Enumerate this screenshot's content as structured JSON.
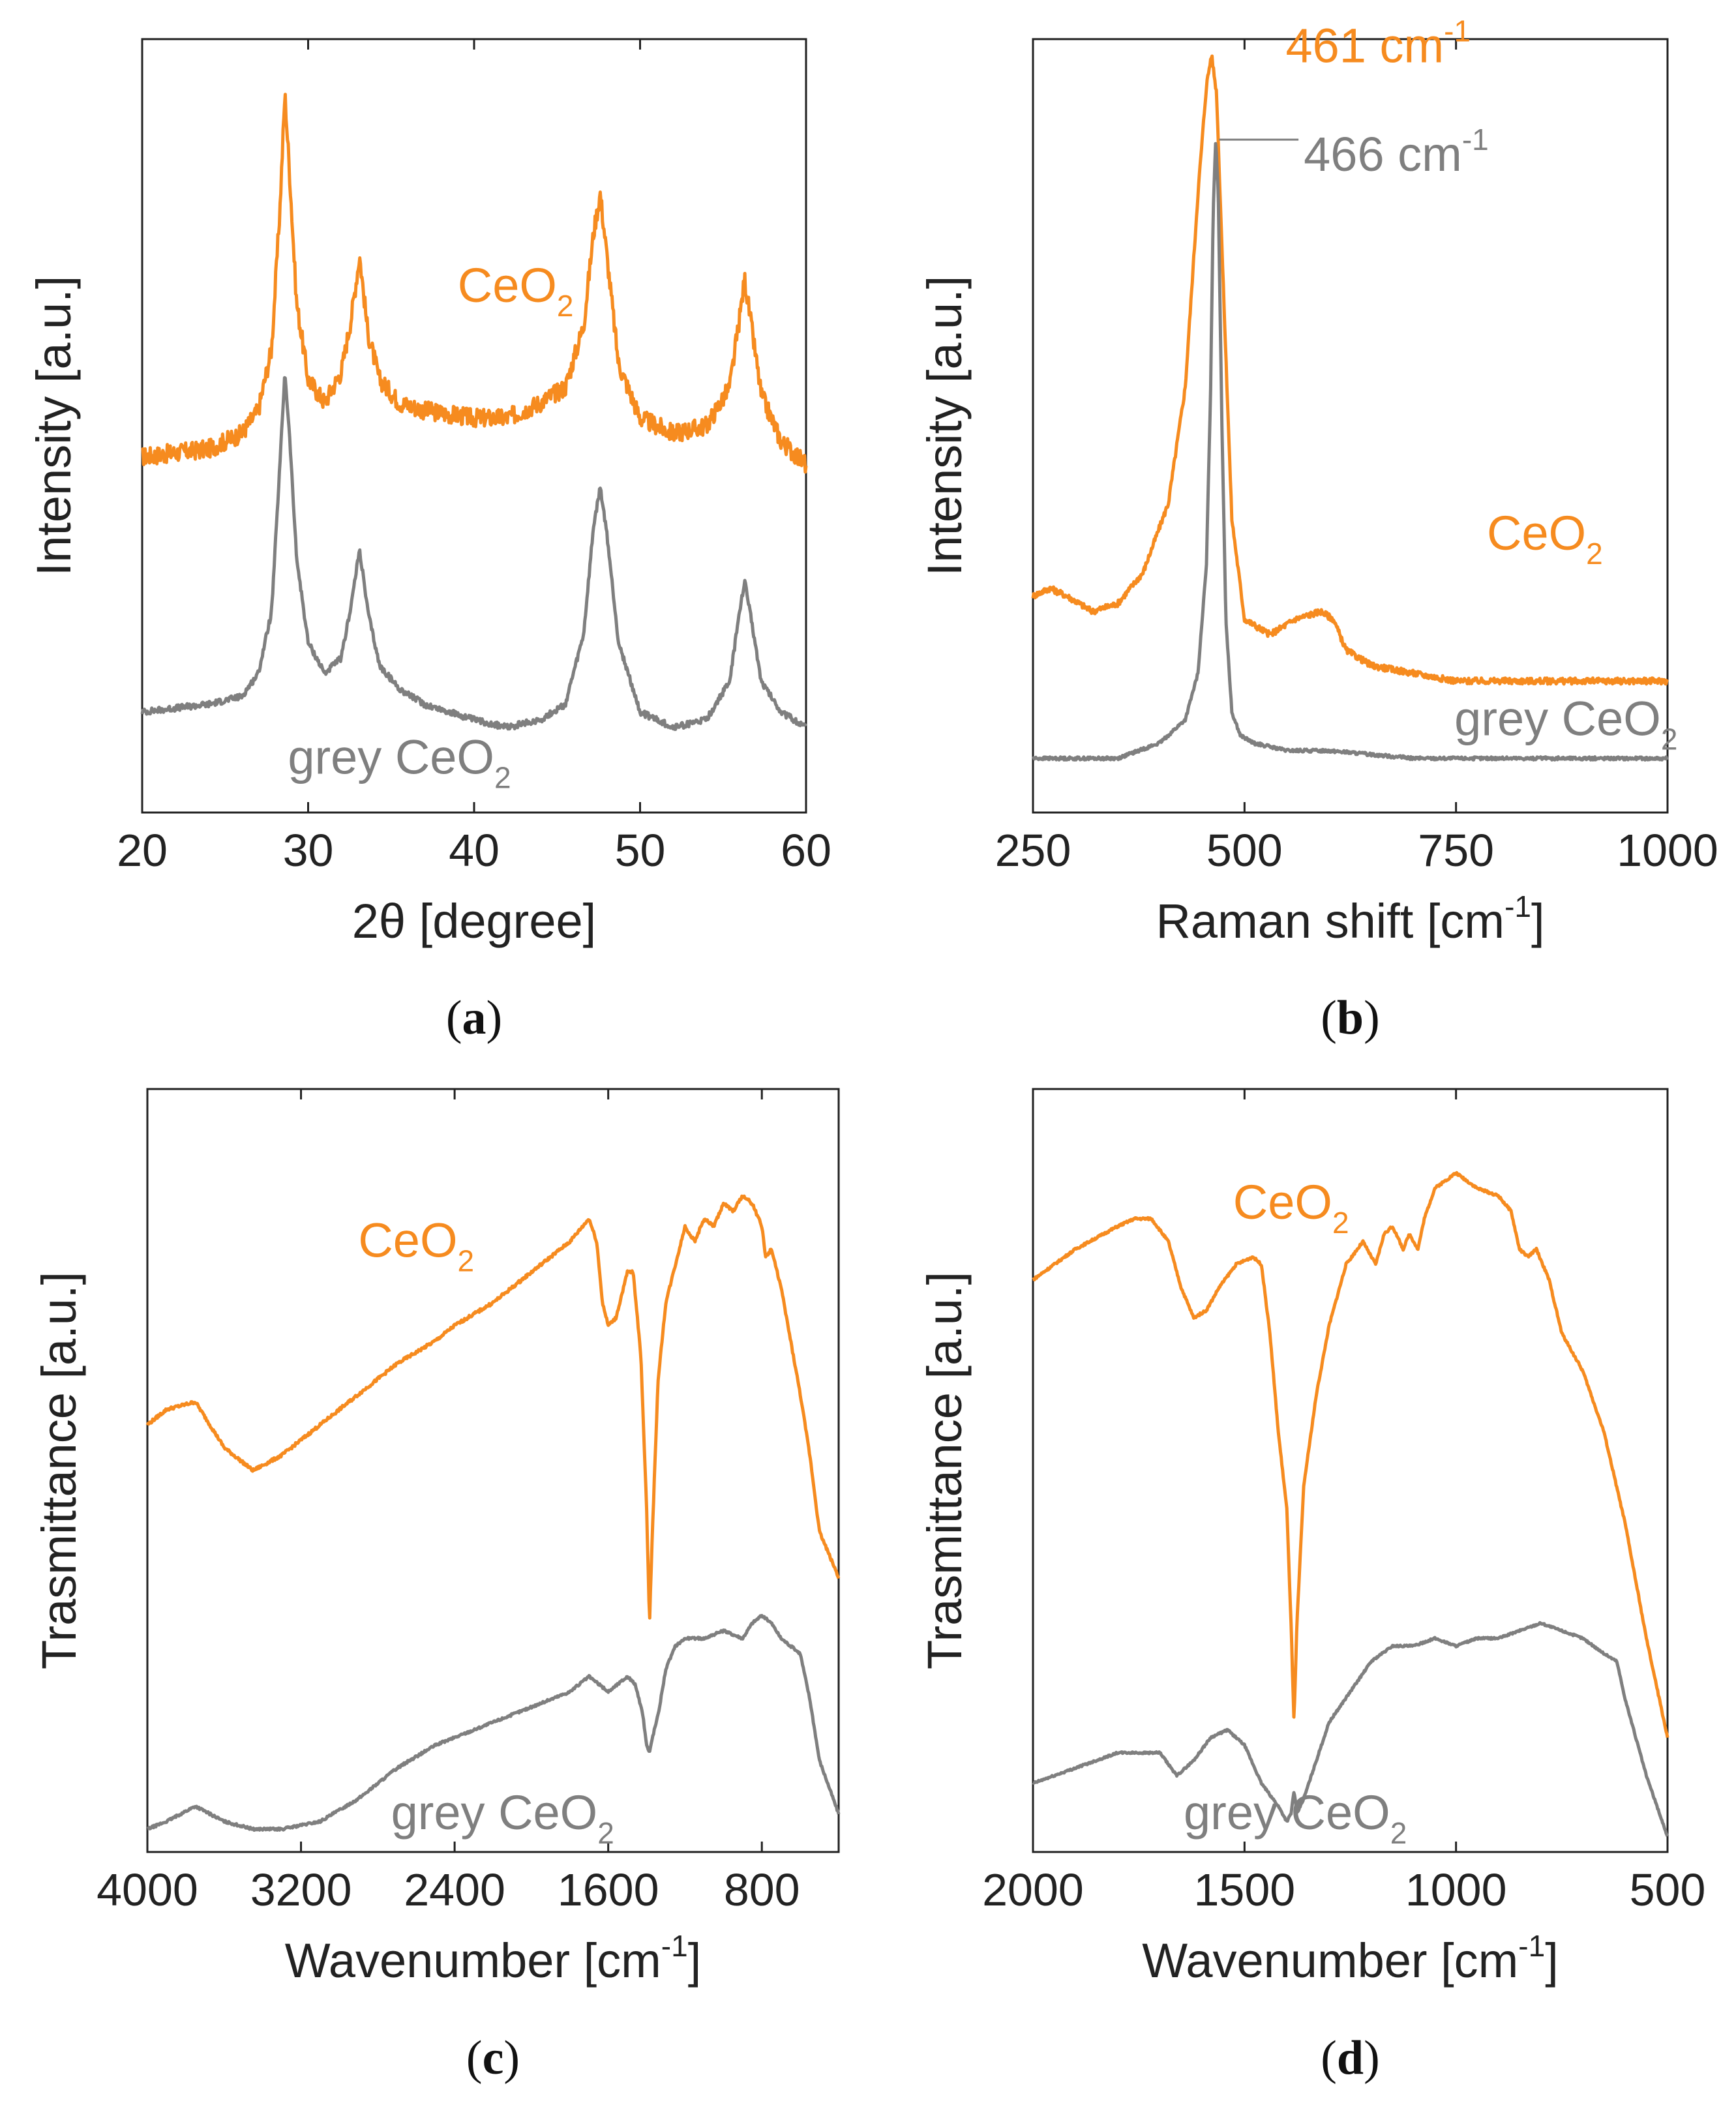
{
  "colors": {
    "orange": "#f68b1f",
    "grey": "#7f7f7f",
    "axis": "#222222"
  },
  "chart_data": [
    {
      "panel": "a",
      "type": "line",
      "caption_label": "a",
      "xlabel": "2θ [degree]",
      "ylabel": "Intensity [a.u.]",
      "xlim": [
        20,
        60
      ],
      "ylim": [
        0,
        1
      ],
      "xticks": [
        20,
        30,
        40,
        50,
        60
      ],
      "xtick_labels": [
        "20",
        "30",
        "40",
        "50",
        "60"
      ],
      "series": [
        {
          "name": "CeO2",
          "label_main": "CeO",
          "label_sub": "2",
          "color": "orange",
          "noise": 0.012,
          "label_at": [
            42.5,
            0.66
          ],
          "x": [
            20,
            24,
            26,
            27,
            27.8,
            28.3,
            28.6,
            28.9,
            29.3,
            30,
            31,
            32,
            32.6,
            33.1,
            33.6,
            34.3,
            35.5,
            37,
            40,
            42,
            44,
            45.5,
            46.6,
            47.2,
            47.6,
            48,
            48.7,
            50,
            52,
            54,
            55.4,
            56,
            56.3,
            56.7,
            57.3,
            58.5,
            60
          ],
          "values": [
            0.46,
            0.47,
            0.49,
            0.52,
            0.6,
            0.78,
            0.93,
            0.82,
            0.66,
            0.56,
            0.53,
            0.57,
            0.64,
            0.72,
            0.62,
            0.56,
            0.53,
            0.52,
            0.51,
            0.51,
            0.53,
            0.55,
            0.63,
            0.75,
            0.8,
            0.72,
            0.58,
            0.51,
            0.49,
            0.5,
            0.55,
            0.64,
            0.69,
            0.63,
            0.54,
            0.48,
            0.45
          ]
        },
        {
          "name": "grey CeO2",
          "label_main": "grey CeO",
          "label_sub": "2",
          "color": "grey",
          "noise": 0.004,
          "label_at": [
            35.5,
            0.05
          ],
          "x": [
            20,
            24,
            26,
            27,
            27.8,
            28.3,
            28.6,
            28.9,
            29.3,
            30,
            31,
            32,
            32.6,
            33.1,
            33.6,
            34.3,
            35.5,
            37,
            40,
            42,
            44,
            45.5,
            46.6,
            47.2,
            47.6,
            48,
            48.7,
            50,
            52,
            54,
            55.4,
            56,
            56.3,
            56.7,
            57.3,
            58.5,
            60
          ],
          "values": [
            0.13,
            0.14,
            0.15,
            0.18,
            0.26,
            0.45,
            0.57,
            0.48,
            0.33,
            0.22,
            0.18,
            0.2,
            0.27,
            0.34,
            0.26,
            0.19,
            0.16,
            0.14,
            0.12,
            0.11,
            0.12,
            0.14,
            0.23,
            0.37,
            0.42,
            0.36,
            0.22,
            0.13,
            0.11,
            0.12,
            0.17,
            0.26,
            0.3,
            0.25,
            0.17,
            0.13,
            0.11
          ]
        }
      ]
    },
    {
      "panel": "b",
      "type": "line",
      "caption_label": "b",
      "xlabel": "Raman shift [cm",
      "xlabel_sup": "-1",
      "xlabel_tail": "]",
      "ylabel": "Intensity [a.u.]",
      "xlim": [
        250,
        1000
      ],
      "ylim": [
        0,
        1
      ],
      "xticks": [
        250,
        500,
        750,
        1000
      ],
      "xtick_labels": [
        "250",
        "500",
        "750",
        "1000"
      ],
      "series": [
        {
          "name": "CeO2",
          "label_main": "CeO",
          "label_sub": "2",
          "color": "orange",
          "noise": 0.004,
          "label_at": [
            855,
            0.34
          ],
          "x": [
            250,
            270,
            290,
            320,
            350,
            380,
            410,
            430,
            445,
            455,
            461,
            467,
            475,
            485,
            500,
            530,
            560,
            590,
            605,
            620,
            650,
            700,
            750,
            800,
            850,
            900,
            950,
            1000
          ],
          "values": [
            0.28,
            0.29,
            0.28,
            0.26,
            0.27,
            0.31,
            0.4,
            0.55,
            0.8,
            0.94,
            0.98,
            0.93,
            0.68,
            0.38,
            0.25,
            0.23,
            0.25,
            0.26,
            0.25,
            0.21,
            0.19,
            0.18,
            0.17,
            0.17,
            0.17,
            0.17,
            0.17,
            0.17
          ]
        },
        {
          "name": "grey CeO2",
          "label_main": "grey CeO",
          "label_sub": "2",
          "color": "grey",
          "noise": 0.002,
          "label_at": [
            880,
            0.1
          ],
          "x": [
            250,
            300,
            350,
            400,
            430,
            445,
            455,
            460,
            463,
            466,
            469,
            473,
            478,
            485,
            495,
            510,
            550,
            600,
            700,
            800,
            900,
            1000
          ],
          "values": [
            0.07,
            0.07,
            0.07,
            0.09,
            0.12,
            0.18,
            0.32,
            0.55,
            0.78,
            0.87,
            0.8,
            0.52,
            0.25,
            0.13,
            0.1,
            0.09,
            0.08,
            0.08,
            0.07,
            0.07,
            0.07,
            0.07
          ]
        }
      ],
      "annotations": [
        {
          "text_main": "461 cm",
          "text_sup": "-1",
          "color": "orange",
          "at": [
            460,
            0.97
          ]
        },
        {
          "text_main": "466 cm",
          "text_sup": "-1",
          "color": "grey",
          "at": [
            570,
            0.85
          ],
          "line_from": [
            470,
            0.87
          ]
        }
      ]
    },
    {
      "panel": "c",
      "type": "line",
      "caption_label": "c",
      "xlabel": "Wavenumber [cm",
      "xlabel_sup": "-1",
      "xlabel_tail": "]",
      "ylabel": "Trasmittance [a.u.]",
      "xlim": [
        4000,
        400
      ],
      "ylim": [
        0,
        1
      ],
      "xticks": [
        4000,
        3200,
        2400,
        1600,
        800
      ],
      "xtick_labels": [
        "4000",
        "3200",
        "2400",
        "1600",
        "800"
      ],
      "series": [
        {
          "name": "CeO2",
          "label_main": "CeO",
          "label_sub": "2",
          "color": "orange",
          "noise": 0.002,
          "label_at": [
            2600,
            0.78
          ],
          "x": [
            4000,
            3900,
            3750,
            3600,
            3450,
            3300,
            3100,
            2900,
            2700,
            2500,
            2400,
            2200,
            2000,
            1800,
            1700,
            1660,
            1630,
            1600,
            1560,
            1500,
            1470,
            1430,
            1400,
            1385,
            1370,
            1340,
            1300,
            1250,
            1200,
            1150,
            1100,
            1050,
            1000,
            950,
            900,
            850,
            800,
            780,
            750,
            700,
            650,
            600,
            550,
            500,
            400
          ],
          "values": [
            0.56,
            0.58,
            0.59,
            0.53,
            0.5,
            0.52,
            0.56,
            0.6,
            0.64,
            0.67,
            0.69,
            0.72,
            0.76,
            0.8,
            0.83,
            0.8,
            0.72,
            0.69,
            0.7,
            0.76,
            0.76,
            0.65,
            0.45,
            0.3,
            0.42,
            0.62,
            0.72,
            0.77,
            0.82,
            0.8,
            0.83,
            0.82,
            0.85,
            0.84,
            0.86,
            0.85,
            0.82,
            0.78,
            0.79,
            0.74,
            0.67,
            0.6,
            0.52,
            0.42,
            0.36
          ]
        },
        {
          "name": "grey CeO2",
          "label_main": "grey CeO",
          "label_sub": "2",
          "color": "grey",
          "noise": 0.0015,
          "label_at": [
            2150,
            0.03
          ],
          "x": [
            4000,
            3900,
            3750,
            3600,
            3450,
            3300,
            3100,
            2900,
            2700,
            2500,
            2400,
            2200,
            2000,
            1800,
            1700,
            1650,
            1600,
            1550,
            1500,
            1460,
            1420,
            1400,
            1385,
            1370,
            1340,
            1300,
            1250,
            1200,
            1100,
            1000,
            900,
            850,
            800,
            750,
            700,
            650,
            600,
            550,
            500,
            400
          ],
          "values": [
            0.03,
            0.04,
            0.06,
            0.04,
            0.03,
            0.03,
            0.04,
            0.07,
            0.11,
            0.14,
            0.15,
            0.17,
            0.19,
            0.21,
            0.23,
            0.22,
            0.21,
            0.22,
            0.23,
            0.22,
            0.18,
            0.14,
            0.13,
            0.15,
            0.18,
            0.24,
            0.27,
            0.28,
            0.28,
            0.29,
            0.28,
            0.3,
            0.31,
            0.3,
            0.28,
            0.27,
            0.26,
            0.2,
            0.12,
            0.05
          ]
        }
      ]
    },
    {
      "panel": "d",
      "type": "line",
      "caption_label": "d",
      "xlabel": "Wavenumber [cm",
      "xlabel_sup": "-1",
      "xlabel_tail": "]",
      "ylabel": "Trasmittance [a.u.]",
      "xlim": [
        2000,
        500
      ],
      "ylim": [
        0,
        1
      ],
      "xticks": [
        2000,
        1500,
        1000,
        500
      ],
      "xtick_labels": [
        "2000",
        "1500",
        "1000",
        "500"
      ],
      "series": [
        {
          "name": "CeO2",
          "label_main": "CeO",
          "label_sub": "2",
          "color": "orange",
          "noise": 0.0015,
          "label_at": [
            1390,
            0.83
          ],
          "x": [
            2000,
            1900,
            1800,
            1760,
            1720,
            1680,
            1650,
            1620,
            1590,
            1560,
            1520,
            1480,
            1460,
            1440,
            1420,
            1400,
            1390,
            1383,
            1376,
            1360,
            1330,
            1300,
            1260,
            1220,
            1190,
            1170,
            1150,
            1125,
            1110,
            1090,
            1075,
            1050,
            1000,
            950,
            900,
            870,
            850,
            830,
            810,
            780,
            750,
            700,
            650,
            600,
            550,
            500
          ],
          "values": [
            0.75,
            0.79,
            0.82,
            0.83,
            0.83,
            0.8,
            0.74,
            0.7,
            0.71,
            0.74,
            0.77,
            0.78,
            0.77,
            0.68,
            0.55,
            0.45,
            0.3,
            0.17,
            0.3,
            0.48,
            0.6,
            0.69,
            0.77,
            0.8,
            0.77,
            0.81,
            0.82,
            0.79,
            0.81,
            0.79,
            0.83,
            0.87,
            0.89,
            0.87,
            0.86,
            0.84,
            0.79,
            0.78,
            0.79,
            0.75,
            0.68,
            0.63,
            0.55,
            0.43,
            0.28,
            0.15
          ]
        },
        {
          "name": "grey CeO2",
          "label_main": "grey CeO",
          "label_sub": "2",
          "color": "grey",
          "noise": 0.0012,
          "label_at": [
            1380,
            0.03
          ],
          "x": [
            2000,
            1900,
            1800,
            1760,
            1700,
            1660,
            1620,
            1580,
            1540,
            1500,
            1460,
            1420,
            1400,
            1390,
            1383,
            1376,
            1360,
            1330,
            1300,
            1250,
            1200,
            1150,
            1100,
            1050,
            1000,
            950,
            900,
            850,
            800,
            750,
            700,
            650,
            620,
            600,
            550,
            500
          ],
          "values": [
            0.09,
            0.11,
            0.13,
            0.13,
            0.13,
            0.1,
            0.12,
            0.15,
            0.16,
            0.14,
            0.09,
            0.06,
            0.04,
            0.05,
            0.08,
            0.05,
            0.07,
            0.12,
            0.17,
            0.21,
            0.25,
            0.27,
            0.27,
            0.28,
            0.27,
            0.28,
            0.28,
            0.29,
            0.3,
            0.29,
            0.28,
            0.26,
            0.25,
            0.2,
            0.1,
            0.02
          ]
        }
      ]
    }
  ]
}
